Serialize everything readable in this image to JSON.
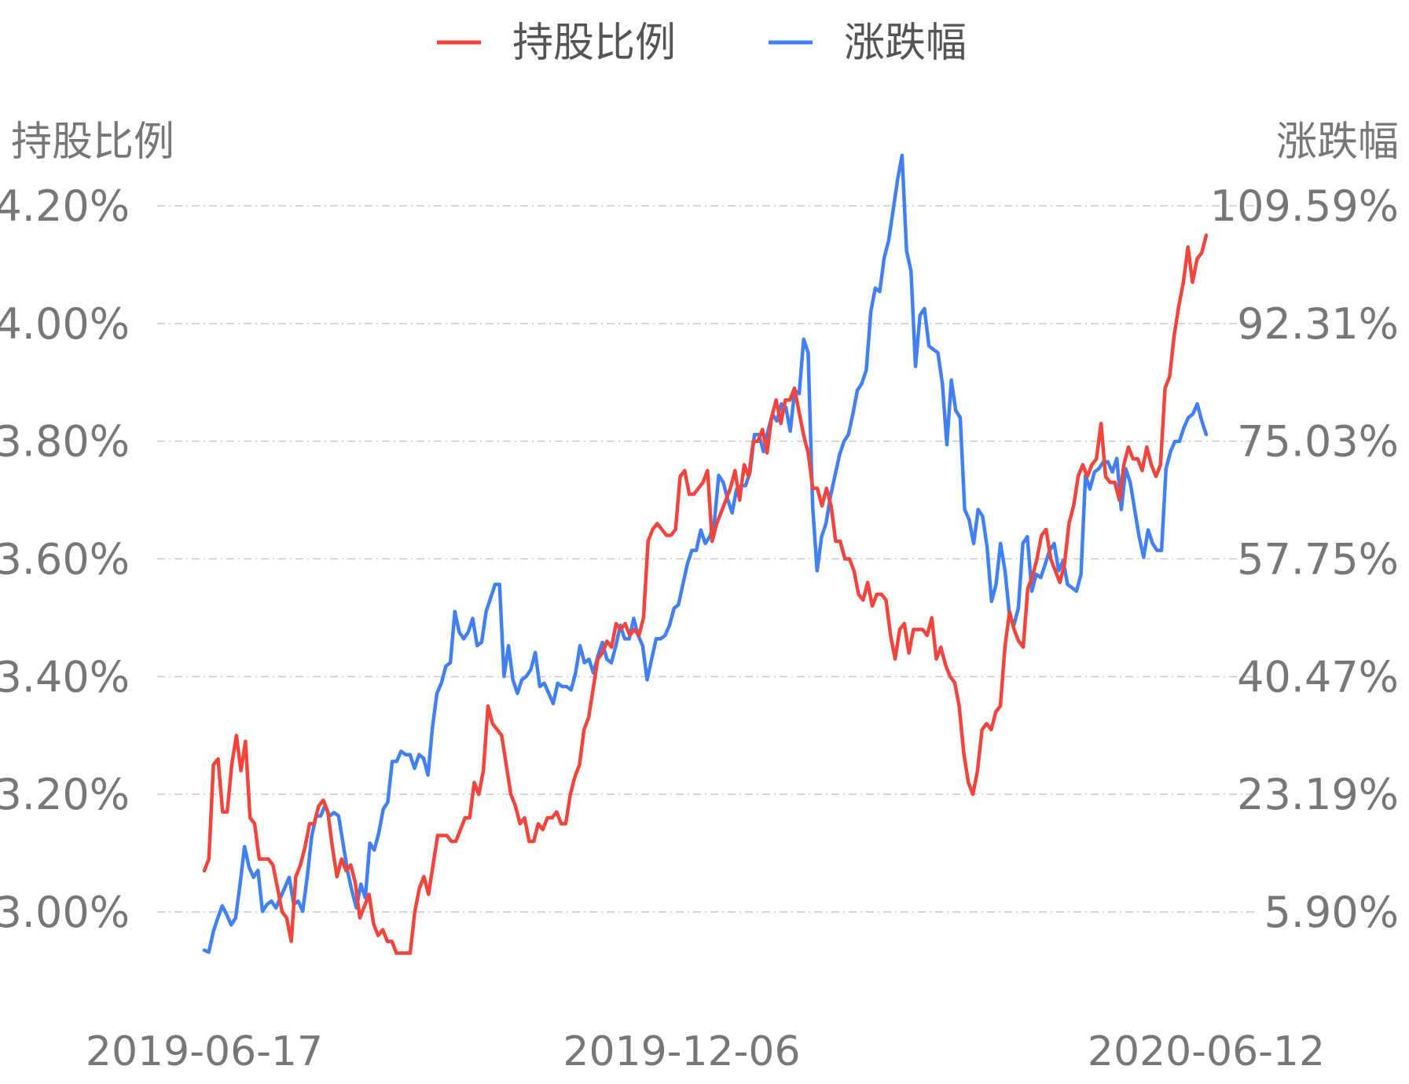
{
  "chart_data": {
    "type": "line",
    "legend": {
      "position": "top-center",
      "entries": [
        "持股比例",
        "涨跌幅"
      ]
    },
    "left_axis": {
      "title": "持股比例",
      "ticks": [
        "4.20%",
        "4.00%",
        "3.80%",
        "3.60%",
        "3.40%",
        "3.20%",
        "3.00%"
      ],
      "range": [
        3.0,
        4.2
      ],
      "unit": "%"
    },
    "right_axis": {
      "title": "涨跌幅",
      "ticks": [
        "109.59%",
        "92.31%",
        "75.03%",
        "57.75%",
        "40.47%",
        "23.19%",
        "5.90%"
      ],
      "range": [
        5.9,
        109.59
      ],
      "unit": "%"
    },
    "x_ticks": [
      "2019-06-17",
      "2019-12-06",
      "2020-06-12"
    ],
    "x_range": [
      "2019-06-17",
      "2020-06-12"
    ],
    "grid": true,
    "series": [
      {
        "name": "持股比例",
        "color": "#f4433b",
        "axis": "left",
        "values": [
          3.07,
          3.09,
          3.25,
          3.26,
          3.17,
          3.17,
          3.25,
          3.3,
          3.24,
          3.29,
          3.16,
          3.15,
          3.09,
          3.09,
          3.09,
          3.08,
          3.04,
          3.0,
          2.99,
          2.95,
          3.06,
          3.08,
          3.11,
          3.15,
          3.15,
          3.18,
          3.19,
          3.17,
          3.11,
          3.06,
          3.09,
          3.07,
          3.08,
          3.05,
          2.99,
          3.01,
          3.03,
          2.98,
          2.96,
          2.97,
          2.95,
          2.95,
          2.93,
          2.93,
          2.93,
          2.93,
          3.0,
          3.04,
          3.06,
          3.03,
          3.08,
          3.13,
          3.13,
          3.13,
          3.12,
          3.12,
          3.14,
          3.16,
          3.16,
          3.22,
          3.2,
          3.24,
          3.35,
          3.32,
          3.31,
          3.3,
          3.25,
          3.2,
          3.18,
          3.15,
          3.16,
          3.12,
          3.12,
          3.15,
          3.14,
          3.16,
          3.16,
          3.17,
          3.15,
          3.15,
          3.2,
          3.23,
          3.25,
          3.31,
          3.33,
          3.38,
          3.43,
          3.44,
          3.46,
          3.45,
          3.49,
          3.48,
          3.49,
          3.47,
          3.48,
          3.47,
          3.5,
          3.63,
          3.65,
          3.66,
          3.65,
          3.64,
          3.64,
          3.65,
          3.74,
          3.75,
          3.71,
          3.71,
          3.72,
          3.73,
          3.75,
          3.63,
          3.66,
          3.68,
          3.7,
          3.72,
          3.75,
          3.7,
          3.76,
          3.74,
          3.8,
          3.8,
          3.82,
          3.78,
          3.84,
          3.87,
          3.83,
          3.87,
          3.87,
          3.89,
          3.85,
          3.81,
          3.78,
          3.72,
          3.72,
          3.69,
          3.72,
          3.69,
          3.63,
          3.63,
          3.6,
          3.6,
          3.58,
          3.54,
          3.53,
          3.56,
          3.52,
          3.54,
          3.54,
          3.53,
          3.47,
          3.43,
          3.48,
          3.49,
          3.44,
          3.48,
          3.48,
          3.48,
          3.47,
          3.5,
          3.43,
          3.45,
          3.42,
          3.4,
          3.39,
          3.35,
          3.27,
          3.22,
          3.2,
          3.24,
          3.31,
          3.32,
          3.31,
          3.34,
          3.35,
          3.45,
          3.51,
          3.48,
          3.46,
          3.45,
          3.55,
          3.57,
          3.6,
          3.64,
          3.65,
          3.6,
          3.58,
          3.56,
          3.59,
          3.66,
          3.69,
          3.74,
          3.76,
          3.74,
          3.76,
          3.77,
          3.83,
          3.74,
          3.73,
          3.73,
          3.7,
          3.76,
          3.79,
          3.77,
          3.77,
          3.75,
          3.79,
          3.76,
          3.74,
          3.76,
          3.89,
          3.91,
          3.98,
          4.03,
          4.07,
          4.13,
          4.07,
          4.11,
          4.12,
          4.15
        ]
      },
      {
        "name": "涨跌幅",
        "color": "#4080f4",
        "axis": "right",
        "values": [
          0.3,
          0.0,
          3.0,
          5.0,
          6.8,
          5.5,
          4.0,
          5.0,
          10.0,
          15.5,
          12.5,
          11.0,
          12.0,
          6.0,
          7.0,
          7.5,
          6.5,
          8.0,
          9.5,
          11.0,
          7.0,
          7.5,
          6.0,
          11.0,
          17.0,
          20.0,
          20.0,
          21.5,
          20.0,
          20.5,
          20.0,
          16.0,
          12.0,
          9.0,
          6.5,
          10.0,
          8.0,
          16.0,
          15.0,
          17.5,
          21.0,
          22.0,
          28.0,
          28.0,
          29.5,
          29.0,
          29.0,
          27.0,
          29.0,
          28.5,
          26.0,
          33.0,
          38.0,
          39.5,
          42.0,
          42.5,
          50.0,
          47.0,
          46.0,
          47.0,
          49.0,
          45.0,
          45.5,
          50.0,
          52.0,
          54.0,
          54.0,
          40.5,
          45.0,
          40.0,
          38.0,
          40.0,
          40.5,
          41.5,
          44.0,
          39.0,
          39.5,
          38.0,
          36.5,
          39.5,
          39.0,
          39.0,
          38.5,
          41.0,
          45.0,
          42.5,
          43.0,
          41.0,
          43.5,
          45.5,
          43.0,
          42.5,
          45.0,
          48.0,
          46.0,
          46.0,
          49.0,
          46.5,
          45.0,
          40.0,
          43.0,
          46.0,
          46.0,
          46.5,
          48.0,
          50.5,
          51.0,
          54.0,
          57.0,
          59.0,
          59.0,
          62.0,
          60.0,
          61.0,
          63.0,
          70.0,
          69.0,
          66.5,
          64.5,
          68.0,
          68.5,
          68.5,
          70.5,
          76.0,
          76.0,
          73.5,
          76.5,
          79.0,
          78.0,
          80.5,
          80.0,
          76.5,
          82.5,
          82.0,
          90.0,
          88.0,
          65.5,
          56.0,
          61.0,
          63.0,
          67.0,
          70.0,
          73.0,
          75.0,
          76.0,
          79.0,
          82.5,
          83.5,
          85.5,
          94.0,
          97.5,
          97.0,
          102.0,
          104.5,
          109.0,
          113.5,
          117.0,
          103.0,
          100.0,
          86.0,
          93.5,
          94.5,
          89.0,
          88.5,
          88.0,
          83.5,
          74.5,
          84.0,
          79.5,
          78.5,
          65.0,
          63.5,
          60.0,
          65.0,
          64.0,
          59.5,
          51.5,
          54.0,
          60.0,
          56.0,
          49.5,
          48.0,
          50.5,
          60.0,
          61.0,
          53.0,
          55.5,
          55.0,
          57.0,
          59.0,
          60.0,
          56.0,
          57.5,
          54.0,
          53.5,
          53.0,
          55.5,
          70.0,
          68.0,
          70.5,
          71.0,
          72.0,
          72.0,
          70.5,
          72.5,
          65.0,
          71.0,
          69.0,
          65.0,
          61.0,
          58.0,
          62.0,
          60.0,
          59.0,
          59.0,
          71.0,
          73.5,
          75.0,
          75.0,
          77.0,
          78.5,
          79.0,
          80.5,
          78.0,
          76.0
        ]
      }
    ]
  }
}
